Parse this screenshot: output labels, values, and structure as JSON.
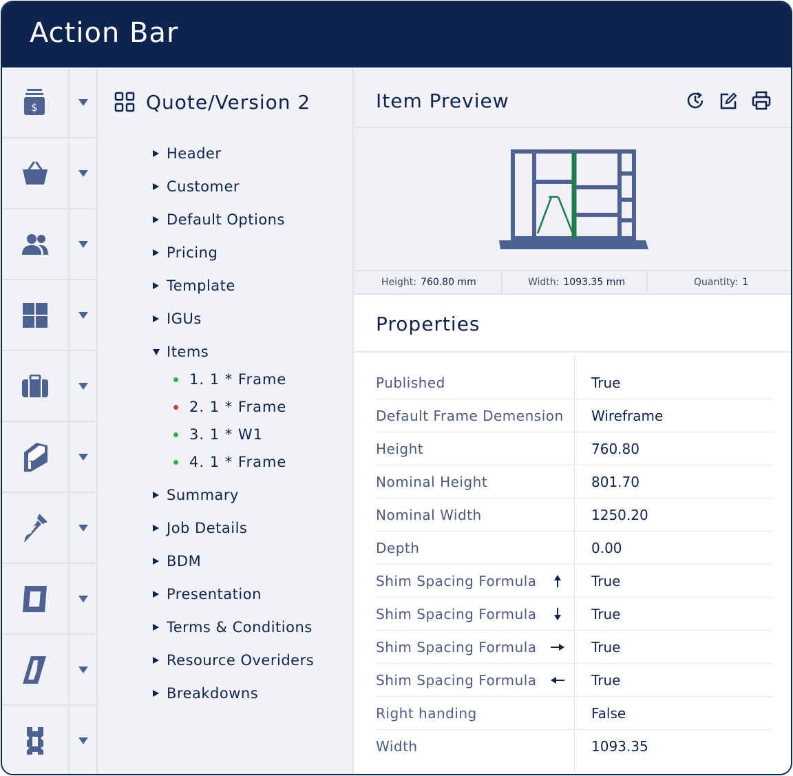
{
  "window": {
    "title": "Action Bar"
  },
  "rail": {
    "items": [
      {
        "icon": "money-stack-icon"
      },
      {
        "icon": "basket-icon"
      },
      {
        "icon": "users-icon"
      },
      {
        "icon": "window-grid-icon"
      },
      {
        "icon": "briefcase-icon"
      },
      {
        "icon": "profile-section-icon"
      },
      {
        "icon": "screw-icon"
      },
      {
        "icon": "frame-icon"
      },
      {
        "icon": "glazing-bead-icon"
      },
      {
        "icon": "seal-profile-icon"
      }
    ]
  },
  "tree": {
    "title": "Quote/Version 2",
    "nodes_top": [
      {
        "label": "Header"
      },
      {
        "label": "Customer"
      },
      {
        "label": "Default Options"
      },
      {
        "label": "Pricing"
      },
      {
        "label": "Template"
      },
      {
        "label": "IGUs"
      }
    ],
    "items_node": {
      "label": "Items",
      "expanded": true
    },
    "items": [
      {
        "label": "1. 1 * Frame",
        "status_color": "#2fb34d"
      },
      {
        "label": "2. 1 * Frame",
        "status_color": "#d53a3a"
      },
      {
        "label": "3. 1 * W1",
        "status_color": "#2fb34d"
      },
      {
        "label": "4. 1 * Frame",
        "status_color": "#2fb34d"
      }
    ],
    "nodes_bottom": [
      {
        "label": "Summary"
      },
      {
        "label": "Job Details"
      },
      {
        "label": "BDM"
      },
      {
        "label": "Presentation"
      },
      {
        "label": "Terms & Conditions"
      },
      {
        "label": "Resource Overiders"
      },
      {
        "label": "Breakdowns"
      }
    ]
  },
  "preview": {
    "title": "Item Preview",
    "tools": [
      "history-icon",
      "edit-icon",
      "print-icon"
    ],
    "dimensions": {
      "height_label": "Height:",
      "height_value": "760.80 mm",
      "width_label": "Width:",
      "width_value": "1093.35 mm",
      "quantity_label": "Quantity:",
      "quantity_value": "1"
    }
  },
  "properties": {
    "title": "Properties",
    "rows": [
      {
        "key": "Published",
        "value": "True"
      },
      {
        "key": "Default Frame Demension",
        "value": "Wireframe"
      },
      {
        "key": "Height",
        "value": "760.80"
      },
      {
        "key": "Nominal Height",
        "value": "801.70"
      },
      {
        "key": "Nominal Width",
        "value": "1250.20"
      },
      {
        "key": "Depth",
        "value": "0.00"
      },
      {
        "key": "Shim Spacing Formula",
        "value": "True",
        "arrow": "arrow-up-icon"
      },
      {
        "key": "Shim Spacing Formula",
        "value": "True",
        "arrow": "arrow-down-icon"
      },
      {
        "key": "Shim Spacing Formula",
        "value": "True",
        "arrow": "arrow-right-icon"
      },
      {
        "key": "Shim Spacing Formula",
        "value": "True",
        "arrow": "arrow-left-icon"
      },
      {
        "key": "Right handing",
        "value": "False"
      },
      {
        "key": "Width",
        "value": "1093.35"
      }
    ]
  },
  "colors": {
    "navy": "#0d2350",
    "icon_slate": "#4d6290",
    "accent_green": "#1f7a4d",
    "panel_bg": "#f1f2f7"
  }
}
